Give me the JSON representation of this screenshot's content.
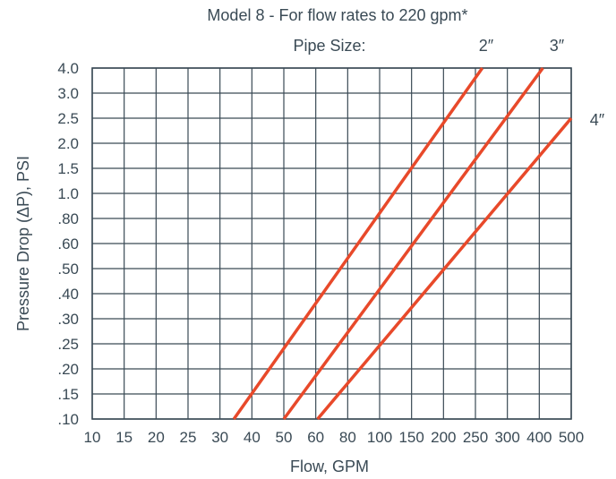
{
  "chart_data": {
    "type": "line",
    "title": "Model 8 - For flow rates to 220 gpm*",
    "legend_title": "Pipe Size:",
    "xlabel": "Flow, GPM",
    "ylabel": "Pressure Drop (ΔP), PSI",
    "x_ticks": [
      10,
      15,
      20,
      25,
      30,
      40,
      50,
      60,
      80,
      100,
      150,
      200,
      250,
      300,
      400,
      500
    ],
    "x_tick_labels": [
      "10",
      "15",
      "20",
      "25",
      "30",
      "40",
      "50",
      "60",
      "80",
      "100",
      "150",
      "200",
      "250",
      "300",
      "400",
      "500"
    ],
    "y_ticks": [
      0.1,
      0.15,
      0.2,
      0.25,
      0.3,
      0.4,
      0.5,
      0.6,
      0.8,
      1.0,
      1.5,
      2.0,
      2.5,
      3.0,
      4.0
    ],
    "y_tick_labels": [
      ".10",
      ".15",
      ".20",
      ".25",
      ".30",
      ".40",
      ".50",
      ".60",
      ".80",
      "1.0",
      "1.5",
      "2.0",
      "2.5",
      "3.0",
      "4.0"
    ],
    "xlim": [
      10,
      500
    ],
    "ylim": [
      0.1,
      4.0
    ],
    "grid": true,
    "series": [
      {
        "name": "2″",
        "x": [
          34,
          260
        ],
        "y": [
          0.1,
          4.0
        ]
      },
      {
        "name": "3″",
        "x": [
          50,
          410
        ],
        "y": [
          0.1,
          4.0
        ]
      },
      {
        "name": "4″",
        "x": [
          61,
          500
        ],
        "y": [
          0.1,
          2.5
        ]
      }
    ],
    "colors": {
      "series": "#e8492a",
      "grid": "#3a4a55",
      "text": "#3a4a55"
    }
  }
}
